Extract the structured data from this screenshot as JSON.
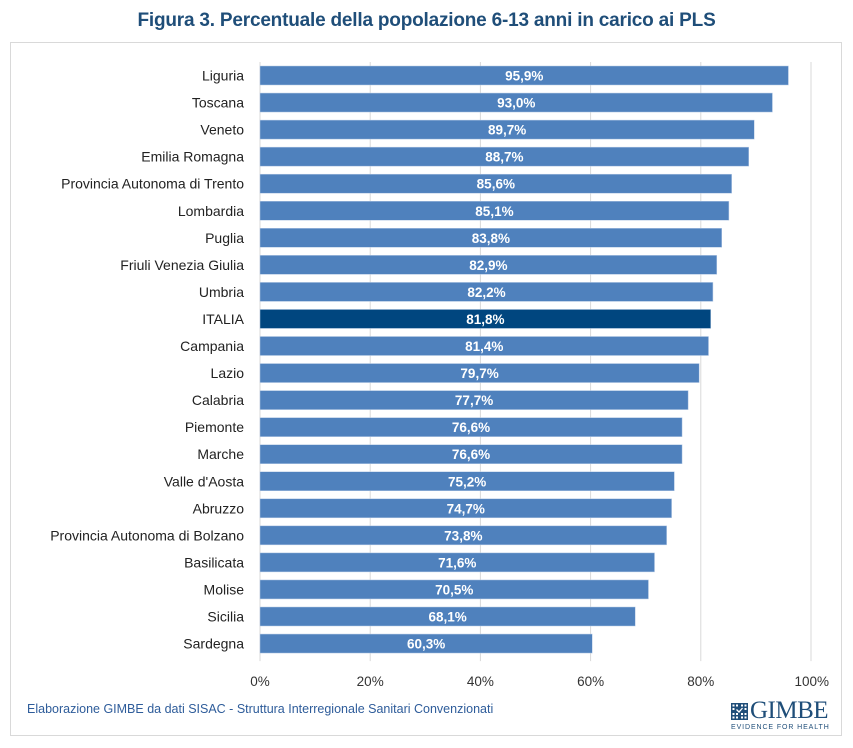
{
  "title": "Figura 3. Percentuale della popolazione 6-13 anni in carico ai PLS",
  "source_note": "Elaborazione GIMBE da dati SISAC - Struttura Interregionale Sanitari Convenzionati",
  "logo": {
    "name": "GIMBE",
    "tagline": "EVIDENCE FOR HEALTH"
  },
  "colors": {
    "bar": "#4f81bd",
    "highlight": "#00467f",
    "title": "#1f4e79",
    "grid": "#d9d9d9",
    "label_text": "#ffffff"
  },
  "chart_data": {
    "type": "bar",
    "orientation": "horizontal",
    "title": "Figura 3. Percentuale della popolazione 6-13 anni in carico ai PLS",
    "xlabel": "",
    "ylabel": "",
    "xlim": [
      0,
      100
    ],
    "x_ticks": [
      "0%",
      "20%",
      "40%",
      "60%",
      "80%",
      "100%"
    ],
    "grid": true,
    "legend": "none",
    "highlight_category": "ITALIA",
    "categories": [
      "Liguria",
      "Toscana",
      "Veneto",
      "Emilia Romagna",
      "Provincia Autonoma di Trento",
      "Lombardia",
      "Puglia",
      "Friuli Venezia Giulia",
      "Umbria",
      "ITALIA",
      "Campania",
      "Lazio",
      "Calabria",
      "Piemonte",
      "Marche",
      "Valle d'Aosta",
      "Abruzzo",
      "Provincia Autonoma di Bolzano",
      "Basilicata",
      "Molise",
      "Sicilia",
      "Sardegna"
    ],
    "values": [
      95.9,
      93.0,
      89.7,
      88.7,
      85.6,
      85.1,
      83.8,
      82.9,
      82.2,
      81.8,
      81.4,
      79.7,
      77.7,
      76.6,
      76.6,
      75.2,
      74.7,
      73.8,
      71.6,
      70.5,
      68.1,
      60.3
    ],
    "data_labels": [
      "95,9%",
      "93,0%",
      "89,7%",
      "88,7%",
      "85,6%",
      "85,1%",
      "83,8%",
      "82,9%",
      "82,2%",
      "81,8%",
      "81,4%",
      "79,7%",
      "77,7%",
      "76,6%",
      "76,6%",
      "75,2%",
      "74,7%",
      "73,8%",
      "71,6%",
      "70,5%",
      "68,1%",
      "60,3%"
    ]
  }
}
